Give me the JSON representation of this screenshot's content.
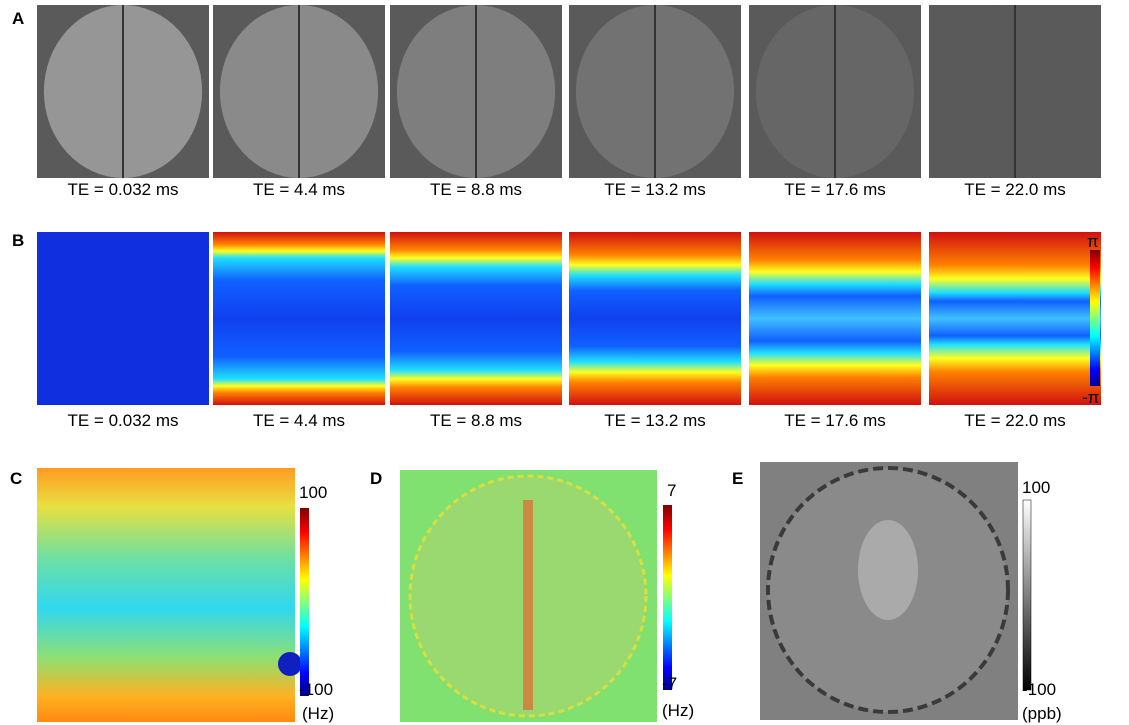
{
  "panels": [
    {
      "label": "A",
      "captions": [
        "TE = 0.032 ms",
        "TE = 4.4 ms",
        "TE = 8.8 ms",
        "TE = 13.2 ms",
        "TE = 17.6 ms",
        "TE = 22.0 ms"
      ]
    },
    {
      "label": "B",
      "captions": [
        "TE = 0.032 ms",
        "TE = 4.4 ms",
        "TE = 8.8 ms",
        "TE = 13.2 ms",
        "TE = 17.6 ms",
        "TE = 22.0 ms"
      ],
      "colorbar": {
        "max": "π",
        "min": "-π"
      }
    },
    {
      "label": "C",
      "colorbar": {
        "max": "100",
        "min": "-100",
        "unit": "(Hz)"
      }
    },
    {
      "label": "D",
      "colorbar": {
        "max": "7",
        "min": "-7",
        "unit": "(Hz)"
      }
    },
    {
      "label": "E",
      "colorbar": {
        "max": "100",
        "min": "-100",
        "unit": "(ppb)"
      }
    }
  ]
}
